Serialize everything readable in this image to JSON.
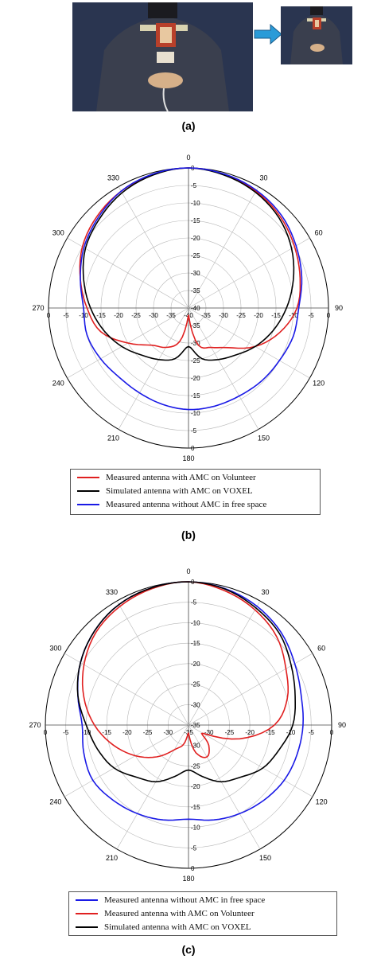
{
  "panels": {
    "a": {
      "caption": "(a)"
    },
    "b": {
      "caption": "(b)"
    },
    "c": {
      "caption": "(c)"
    }
  },
  "colors": {
    "measured_volunteer": "#e02020",
    "simulated_voxel": "#000000",
    "free_space": "#1a1ae6",
    "grid": "#b8b8b8",
    "photo_bg": "#2a3550",
    "arrow": "#2a9bd8"
  },
  "chart_data": [
    {
      "type": "polar-line",
      "panel": "b",
      "angle_labels": [
        "0",
        "30",
        "60",
        "90",
        "120",
        "150",
        "180",
        "210",
        "240",
        "270",
        "300",
        "330"
      ],
      "radial_range": [
        -40,
        0
      ],
      "radial_ticks_top": [
        "0",
        "-5",
        "-10",
        "-15",
        "-20",
        "-25",
        "-30",
        "-35",
        "-40"
      ],
      "radial_ticks_bottom": [
        "-40",
        "-35",
        "-30",
        "-25",
        "-20",
        "-15",
        "-10",
        "-5",
        "0"
      ],
      "radial_ticks_left": [
        "0",
        "-5",
        "-10",
        "-15",
        "-20",
        "-25",
        "-30",
        "-35",
        "-40"
      ],
      "radial_ticks_right": [
        "-40",
        "-35",
        "-30",
        "-25",
        "-20",
        "-15",
        "-10",
        "-5",
        "0"
      ],
      "angles_deg": [
        0,
        15,
        30,
        45,
        60,
        75,
        90,
        105,
        120,
        135,
        150,
        165,
        180,
        195,
        210,
        225,
        240,
        255,
        270,
        285,
        300,
        315,
        330,
        345,
        360
      ],
      "legend_position": "bottom",
      "series": [
        {
          "name": "Measured antenna with AMC on Volunteer",
          "color_key": "measured_volunteer",
          "values": [
            0,
            -0.5,
            -1.5,
            -3,
            -5,
            -7,
            -9,
            -13,
            -18,
            -24,
            -27,
            -29,
            -38,
            -30,
            -27,
            -25,
            -20,
            -14,
            -11,
            -8,
            -5,
            -3,
            -1.5,
            -0.5,
            0
          ]
        },
        {
          "name": "Simulated antenna with AMC on VOXEL",
          "color_key": "simulated_voxel",
          "values": [
            0,
            -0.7,
            -1.8,
            -3.5,
            -6,
            -9,
            -12,
            -15,
            -18,
            -21,
            -23,
            -25,
            -29,
            -25,
            -23,
            -21,
            -18,
            -15,
            -12,
            -9,
            -6,
            -4,
            -2,
            -0.7,
            0
          ]
        },
        {
          "name": "Measured antenna without AMC in free space",
          "color_key": "free_space",
          "values": [
            0,
            -0.4,
            -1.2,
            -2.5,
            -4.5,
            -6.5,
            -8.5,
            -9,
            -10,
            -10.5,
            -11,
            -11,
            -11,
            -11.5,
            -12,
            -12,
            -11,
            -10,
            -10,
            -8,
            -5.5,
            -3.5,
            -1.5,
            -0.4,
            0
          ]
        }
      ]
    },
    {
      "type": "polar-line",
      "panel": "c",
      "angle_labels": [
        "0",
        "30",
        "60",
        "90",
        "120",
        "150",
        "180",
        "210",
        "240",
        "270",
        "300",
        "330"
      ],
      "radial_range": [
        -35,
        0
      ],
      "radial_ticks_top": [
        "0",
        "-5",
        "-10",
        "-15",
        "-20",
        "-25",
        "-30",
        "-35"
      ],
      "radial_ticks_bottom": [
        "-35",
        "-30",
        "-25",
        "-20",
        "-15",
        "-10",
        "-5",
        "0"
      ],
      "radial_ticks_left": [
        "0",
        "-5",
        "-10",
        "-15",
        "-20",
        "-25",
        "-30",
        "-35"
      ],
      "radial_ticks_right": [
        "-35",
        "-30",
        "-25",
        "-20",
        "-15",
        "-10",
        "-5",
        "0"
      ],
      "angles_deg": [
        0,
        15,
        30,
        45,
        60,
        75,
        90,
        105,
        120,
        135,
        150,
        165,
        180,
        195,
        210,
        225,
        240,
        255,
        270,
        285,
        300,
        315,
        330,
        345,
        360
      ],
      "legend_position": "bottom",
      "series": [
        {
          "name": "Measured antenna without AMC in free space",
          "color_key": "free_space",
          "values": [
            0,
            -0.5,
            -1.5,
            -3,
            -5,
            -6.5,
            -7,
            -7.5,
            -8,
            -9,
            -10,
            -11,
            -12,
            -11,
            -10,
            -9,
            -8,
            -8.5,
            -9,
            -7,
            -4.5,
            -2.5,
            -1,
            -0.3,
            0
          ]
        },
        {
          "name": "Measured antenna with AMC on Volunteer",
          "color_key": "measured_volunteer",
          "values": [
            0,
            -1,
            -2.5,
            -4.5,
            -7.5,
            -10,
            -14,
            -22,
            -31,
            -28,
            -26,
            -28,
            -33,
            -30,
            -28,
            -24,
            -20,
            -16,
            -12,
            -8.5,
            -5.5,
            -3,
            -1.5,
            -0.5,
            0
          ]
        },
        {
          "name": "Simulated antenna with AMC on VOXEL",
          "color_key": "simulated_voxel",
          "values": [
            0,
            -0.6,
            -2,
            -3.5,
            -6,
            -8,
            -9.5,
            -12,
            -14,
            -17,
            -19,
            -22,
            -24,
            -22,
            -19,
            -17,
            -14,
            -12,
            -10,
            -7,
            -4.5,
            -2.5,
            -1,
            -0.3,
            0
          ]
        }
      ]
    }
  ]
}
